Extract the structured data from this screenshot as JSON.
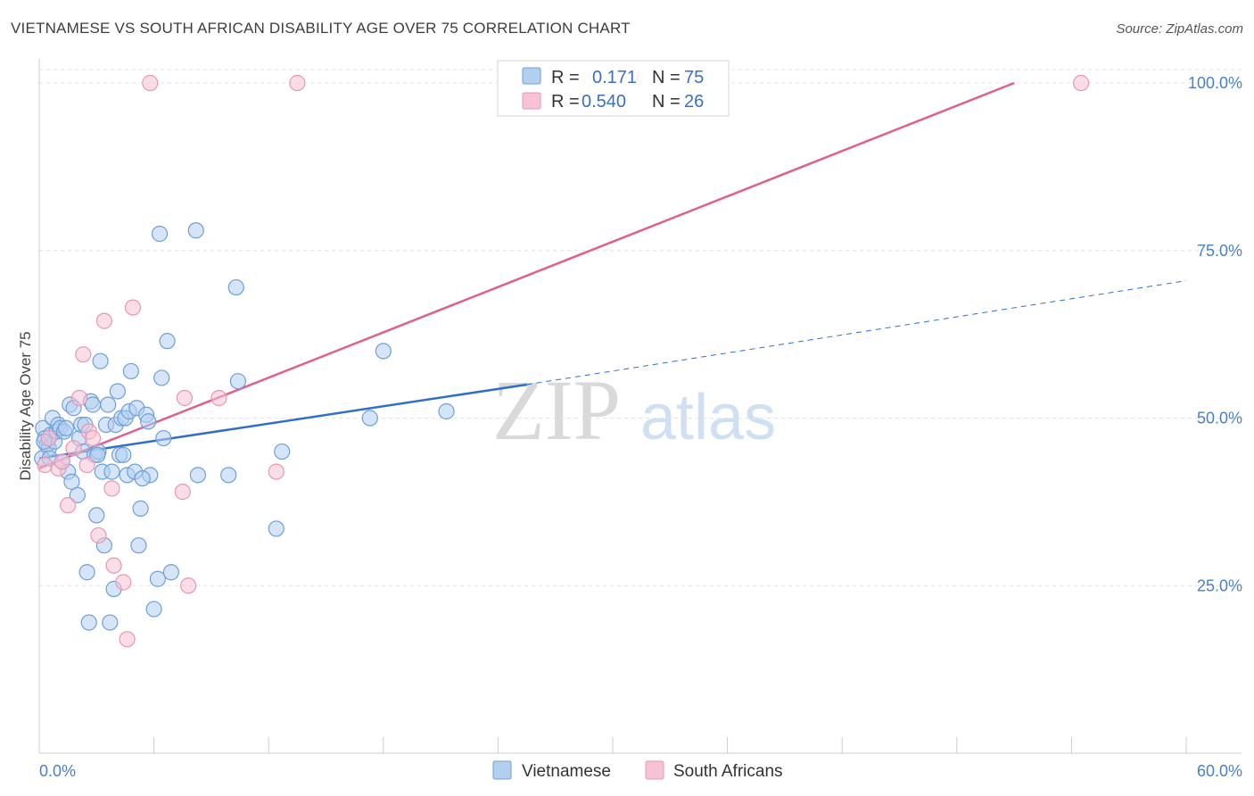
{
  "title": "VIETNAMESE VS SOUTH AFRICAN DISABILITY AGE OVER 75 CORRELATION CHART",
  "source": "Source: ZipAtlas.com",
  "watermark": {
    "zip": "ZIP",
    "atlas": "atlas"
  },
  "colors": {
    "vietnamese_fill": "#b3cff0",
    "vietnamese_stroke": "#6f9fd8",
    "vietnamese_line": "#2f6fca",
    "south_african_fill": "#f6c3d3",
    "south_african_stroke": "#e996b2",
    "south_african_line": "#e0608c",
    "grid": "#e3e3e3",
    "tick_text": "#4a7fc8"
  },
  "legend": {
    "rows": [
      {
        "r_label": "R =",
        "r_value": "0.171",
        "n_label": "N =",
        "n_value": "75"
      },
      {
        "r_label": "R =",
        "r_value": "0.540",
        "n_label": "N =",
        "n_value": "26"
      }
    ]
  },
  "bottom_legend": [
    "Vietnamese",
    "South Africans"
  ],
  "chart_data": {
    "type": "scatter",
    "title": "VIETNAMESE VS SOUTH AFRICAN DISABILITY AGE OVER 75 CORRELATION CHART",
    "xlabel": "",
    "ylabel": "Disability Age Over 75",
    "xlim": [
      0,
      60
    ],
    "ylim": [
      0,
      102
    ],
    "x_tick_labels": [
      {
        "value": 0,
        "label": "0.0%"
      },
      {
        "value": 60,
        "label": "60.0%"
      }
    ],
    "y_tick_labels": [
      {
        "value": 25,
        "label": "25.0%"
      },
      {
        "value": 50,
        "label": "50.0%"
      },
      {
        "value": 75,
        "label": "75.0%"
      },
      {
        "value": 100,
        "label": "100.0%"
      }
    ],
    "series": [
      {
        "name": "Vietnamese",
        "r": 0.171,
        "n": 75,
        "trend": {
          "x0": 0,
          "y0": 44.0,
          "x1": 25.5,
          "y1": 55.0,
          "dashed_to_x": 60,
          "dashed_to_y": 70.5
        },
        "points": [
          [
            0.2,
            48.5
          ],
          [
            0.3,
            47.0
          ],
          [
            0.4,
            46.0
          ],
          [
            0.5,
            45.5
          ],
          [
            0.6,
            47.5
          ],
          [
            0.7,
            50.0
          ],
          [
            0.8,
            46.5
          ],
          [
            0.9,
            48.0
          ],
          [
            1.0,
            49.0
          ],
          [
            1.1,
            48.5
          ],
          [
            1.2,
            43.5
          ],
          [
            1.3,
            48.0
          ],
          [
            1.5,
            42.0
          ],
          [
            1.6,
            52.0
          ],
          [
            1.7,
            40.5
          ],
          [
            1.8,
            51.5
          ],
          [
            2.0,
            38.5
          ],
          [
            2.1,
            47.0
          ],
          [
            2.2,
            49.0
          ],
          [
            2.3,
            45.0
          ],
          [
            2.5,
            27.0
          ],
          [
            2.6,
            19.5
          ],
          [
            2.7,
            52.5
          ],
          [
            2.8,
            52.0
          ],
          [
            2.9,
            44.5
          ],
          [
            3.0,
            35.5
          ],
          [
            3.1,
            45.0
          ],
          [
            3.2,
            58.5
          ],
          [
            3.3,
            42.0
          ],
          [
            3.4,
            31.0
          ],
          [
            3.5,
            49.0
          ],
          [
            3.6,
            52.0
          ],
          [
            3.7,
            19.5
          ],
          [
            3.8,
            42.0
          ],
          [
            3.9,
            24.5
          ],
          [
            4.0,
            49.0
          ],
          [
            4.1,
            54.0
          ],
          [
            4.2,
            44.5
          ],
          [
            4.3,
            50.0
          ],
          [
            4.4,
            44.5
          ],
          [
            4.5,
            50.0
          ],
          [
            4.6,
            41.5
          ],
          [
            4.7,
            51.0
          ],
          [
            4.8,
            57.0
          ],
          [
            5.0,
            42.0
          ],
          [
            5.1,
            51.5
          ],
          [
            5.2,
            31.0
          ],
          [
            5.3,
            36.5
          ],
          [
            5.6,
            50.5
          ],
          [
            5.7,
            49.5
          ],
          [
            5.8,
            41.5
          ],
          [
            6.0,
            21.5
          ],
          [
            6.2,
            26.0
          ],
          [
            6.3,
            77.5
          ],
          [
            6.4,
            56.0
          ],
          [
            6.5,
            47.0
          ],
          [
            6.7,
            61.5
          ],
          [
            6.9,
            27.0
          ],
          [
            8.2,
            78.0
          ],
          [
            8.3,
            41.5
          ],
          [
            9.9,
            41.5
          ],
          [
            10.3,
            69.5
          ],
          [
            10.4,
            55.5
          ],
          [
            12.4,
            33.5
          ],
          [
            12.7,
            45.0
          ],
          [
            17.3,
            50.0
          ],
          [
            18.0,
            60.0
          ],
          [
            21.3,
            51.0
          ],
          [
            0.15,
            44.0
          ],
          [
            0.25,
            46.5
          ],
          [
            1.4,
            48.5
          ],
          [
            2.4,
            49.0
          ],
          [
            3.05,
            44.5
          ],
          [
            0.55,
            44.0
          ],
          [
            5.4,
            41.0
          ]
        ]
      },
      {
        "name": "South Africans",
        "r": 0.54,
        "n": 26,
        "trend": {
          "x0": 0,
          "y0": 42.5,
          "x1": 51.0,
          "y1": 100.0
        },
        "points": [
          [
            0.3,
            43.0
          ],
          [
            0.5,
            47.0
          ],
          [
            1.0,
            42.5
          ],
          [
            1.2,
            43.5
          ],
          [
            1.5,
            37.0
          ],
          [
            1.8,
            45.5
          ],
          [
            2.1,
            53.0
          ],
          [
            2.3,
            59.5
          ],
          [
            2.5,
            43.0
          ],
          [
            2.6,
            48.0
          ],
          [
            2.8,
            47.0
          ],
          [
            3.1,
            32.5
          ],
          [
            3.4,
            64.5
          ],
          [
            3.8,
            39.5
          ],
          [
            3.9,
            28.0
          ],
          [
            4.4,
            25.5
          ],
          [
            4.6,
            17.0
          ],
          [
            4.9,
            66.5
          ],
          [
            5.8,
            100.0
          ],
          [
            7.5,
            39.0
          ],
          [
            7.6,
            53.0
          ],
          [
            7.8,
            25.0
          ],
          [
            9.4,
            53.0
          ],
          [
            12.4,
            42.0
          ],
          [
            13.5,
            100.0
          ],
          [
            54.5,
            100.0
          ]
        ]
      }
    ]
  }
}
